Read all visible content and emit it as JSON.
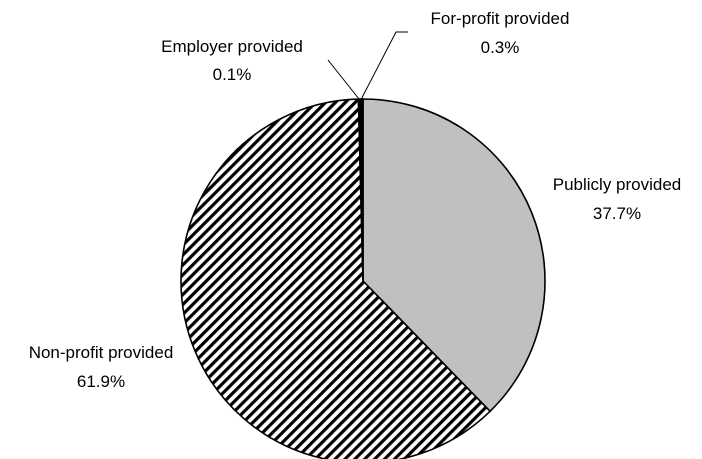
{
  "chart_data": {
    "type": "pie",
    "title": "",
    "start_angle_deg": 0,
    "direction": "clockwise",
    "slices": [
      {
        "label": "Publicly provided",
        "value": 37.7,
        "value_label": "37.7%",
        "fill": "solid",
        "color": "#c0c0c0"
      },
      {
        "label": "Non-profit provided",
        "value": 61.9,
        "value_label": "61.9%",
        "fill": "diagonal-hatch",
        "color": "#000000"
      },
      {
        "label": "Employer provided",
        "value": 0.1,
        "value_label": "0.1%",
        "fill": "solid",
        "color": "#ffffff"
      },
      {
        "label": "For-profit provided",
        "value": 0.3,
        "value_label": "0.3%",
        "fill": "solid",
        "color": "#000000"
      }
    ],
    "legend": "none",
    "label_position": "outside"
  }
}
